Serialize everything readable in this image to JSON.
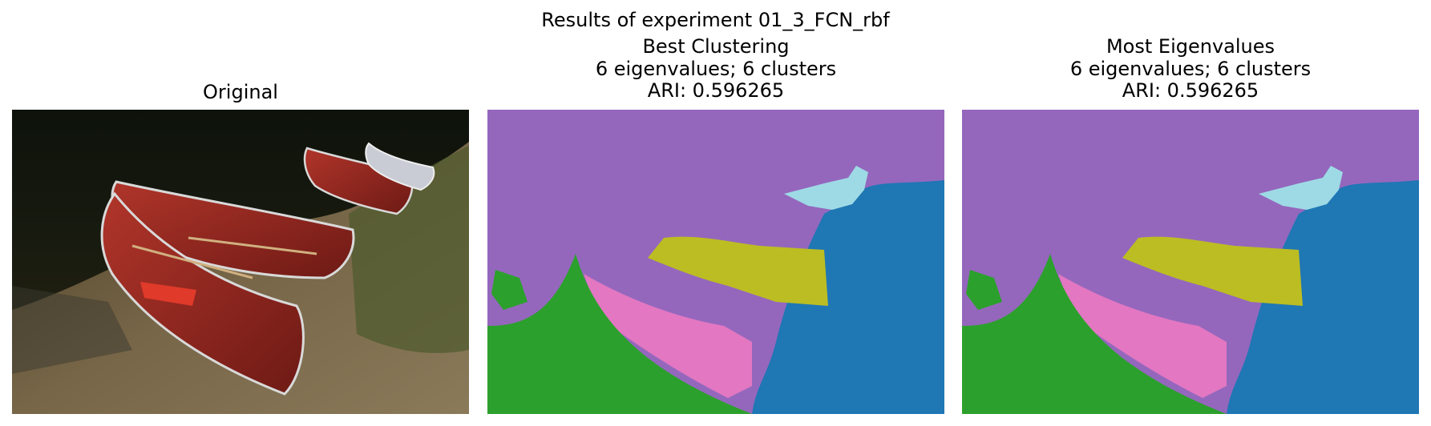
{
  "figure": {
    "suptitle": "Results of experiment 01_3_FCN_rbf",
    "panels": [
      {
        "name": "original",
        "title_lines": [
          "Original"
        ]
      },
      {
        "name": "best-clustering",
        "title_lines": [
          "Best Clustering",
          "6 eigenvalues; 6 clusters",
          "ARI: 0.596265"
        ]
      },
      {
        "name": "most-eigenvalues",
        "title_lines": [
          "Most Eigenvalues",
          "6 eigenvalues; 6 clusters",
          "ARI: 0.596265"
        ]
      }
    ]
  },
  "colors": {
    "cluster_purple": "#9467bd",
    "cluster_blue": "#1f77b4",
    "cluster_green": "#2ca02c",
    "cluster_pink": "#e377c2",
    "cluster_olive": "#bcbd22",
    "cluster_cyan": "#9edae5",
    "canoe_red": "#9c2a22",
    "water_dark": "#14190f",
    "ground_brown": "#6a5a3c"
  }
}
